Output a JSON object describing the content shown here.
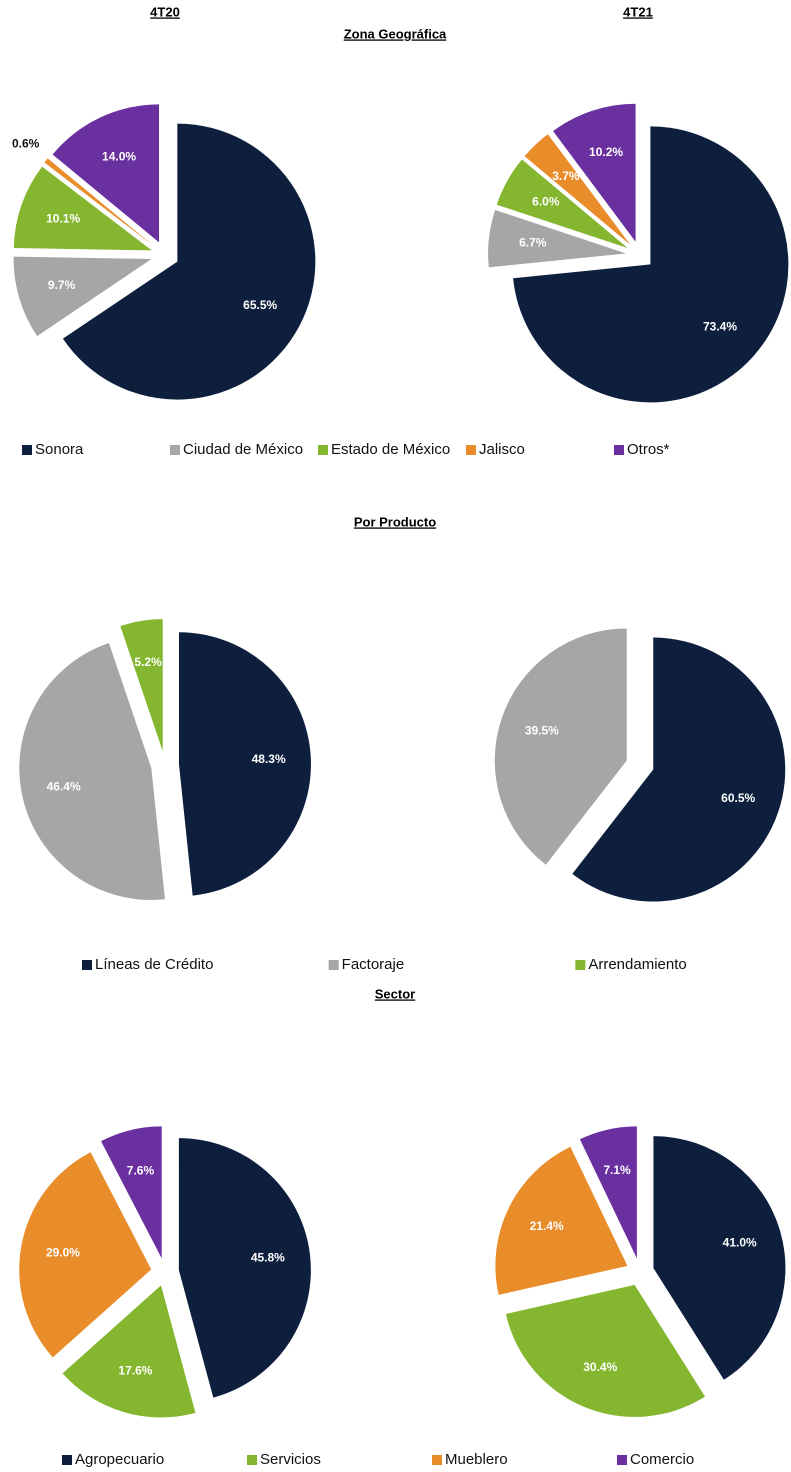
{
  "column_titles": [
    "4T20",
    "4T21"
  ],
  "chart_data": [
    {
      "type": "pie",
      "title": "Zona Geográfica",
      "categories": [
        "Sonora",
        "Ciudad de México",
        "Estado de México",
        "Jalisco",
        "Otros*"
      ],
      "colors": [
        "#0e1f3d",
        "#a6a6a6",
        "#84b62f",
        "#e98c2a",
        "#6a30a0"
      ],
      "series": [
        {
          "values": [
            65.5,
            9.7,
            10.1,
            0.6,
            14.0
          ],
          "value_labels": [
            "65.5%",
            "9.7%",
            "10.1%",
            "0.6%",
            "14.0%"
          ]
        },
        {
          "values": [
            73.4,
            6.7,
            6.0,
            3.7,
            10.2
          ],
          "value_labels": [
            "73.4%",
            "6.7%",
            "6.0%",
            "3.7%",
            "10.2%"
          ]
        }
      ]
    },
    {
      "type": "pie",
      "title": "Por Producto",
      "categories": [
        "Líneas de Crédito",
        "Factoraje",
        "Arrendamiento"
      ],
      "colors": [
        "#0e1f3d",
        "#a6a6a6",
        "#84b62f"
      ],
      "series": [
        {
          "values": [
            48.3,
            46.4,
            5.2
          ],
          "value_labels": [
            "48.3%",
            "46.4%",
            "5.2%"
          ]
        },
        {
          "values": [
            60.5,
            39.5,
            null
          ],
          "value_labels": [
            "60.5%",
            "39.5%",
            null
          ]
        }
      ]
    },
    {
      "type": "pie",
      "title": "Sector",
      "categories": [
        "Agropecuario",
        "Servicios",
        "Mueblero",
        "Comercio"
      ],
      "colors": [
        "#0e1f3d",
        "#84b62f",
        "#e98c2a",
        "#6a30a0"
      ],
      "series": [
        {
          "values": [
            45.8,
            17.6,
            29.0,
            7.6
          ],
          "value_labels": [
            "45.8%",
            "17.6%",
            "29.0%",
            "7.6%"
          ]
        },
        {
          "values": [
            41.0,
            30.4,
            21.4,
            7.1
          ],
          "value_labels": [
            "41.0%",
            "30.4%",
            "21.4%",
            "7.1%"
          ]
        }
      ]
    }
  ]
}
